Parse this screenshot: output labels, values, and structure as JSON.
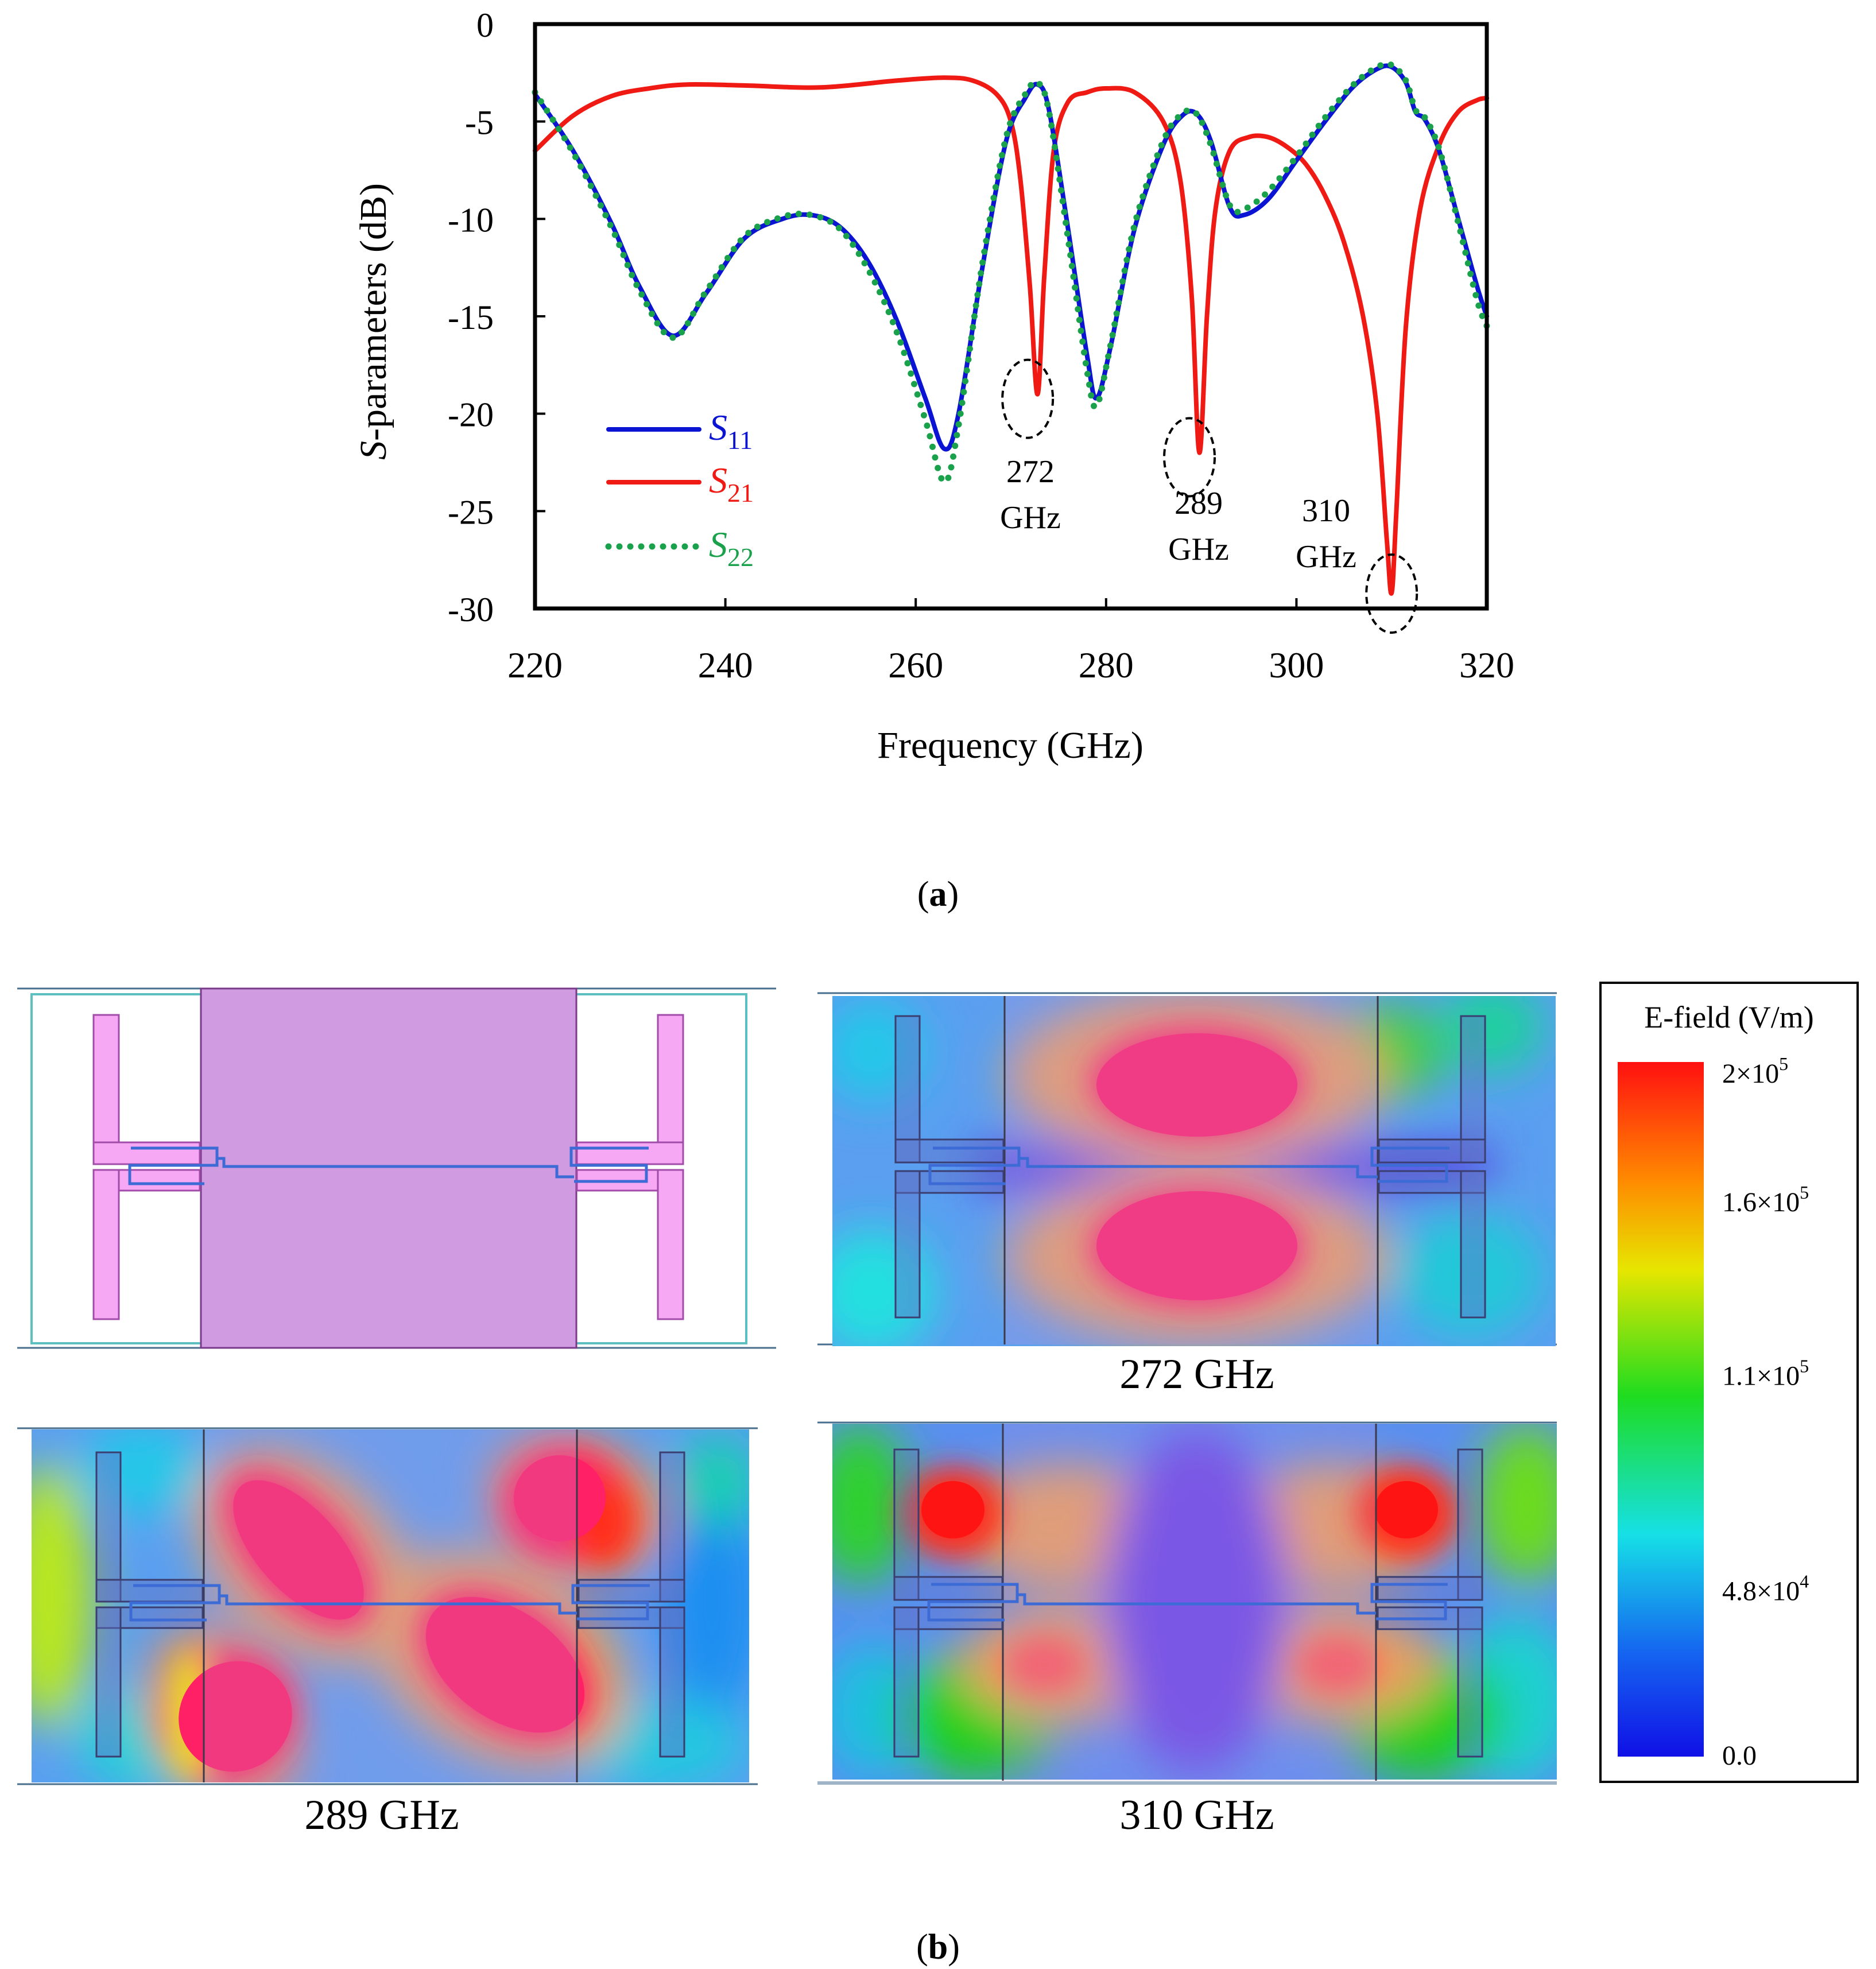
{
  "chart_data": {
    "type": "line",
    "xlabel": "Frequency  (GHz)",
    "ylabel": "S-parameters (dB)",
    "ylabel_italic_prefix": "S",
    "ylabel_rest": "-parameters (dB)",
    "xlim": [
      220,
      320
    ],
    "ylim": [
      -30,
      0
    ],
    "x_ticks": [
      220,
      240,
      260,
      280,
      300,
      320
    ],
    "y_ticks": [
      0,
      -5,
      -10,
      -15,
      -20,
      -25,
      -30
    ],
    "y_tick_labels": [
      "0",
      "-5",
      "-10",
      "-15",
      "-20",
      "-25",
      "-30"
    ],
    "x_tick_labels": [
      "220",
      "240",
      "260",
      "280",
      "300",
      "320"
    ],
    "series": [
      {
        "name": "S11",
        "label_main": "S",
        "label_sub": "11",
        "color": "#0a14d2",
        "style": "solid",
        "x": [
          220,
          224,
          228,
          231,
          234.5,
          238,
          242,
          246,
          249,
          252,
          255,
          258,
          261,
          263,
          264.5,
          267,
          269.5,
          271.5,
          272.8,
          274,
          276,
          278,
          279,
          280.5,
          283,
          286,
          288,
          289.5,
          291,
          293,
          294.5,
          297,
          300,
          303,
          306,
          308.5,
          310,
          311.5,
          312.5,
          313.5,
          315,
          317,
          319,
          320
        ],
        "y": [
          -3.6,
          -6.5,
          -10.2,
          -13.5,
          -16.0,
          -13.8,
          -11.0,
          -10.0,
          -9.8,
          -10.4,
          -12.2,
          -15.2,
          -19.2,
          -21.8,
          -20.0,
          -12.5,
          -6.0,
          -3.8,
          -3.1,
          -4.4,
          -10.5,
          -17.0,
          -19.2,
          -16.5,
          -10.5,
          -6.2,
          -4.7,
          -4.6,
          -6.0,
          -9.4,
          -9.8,
          -9.0,
          -7.0,
          -5.0,
          -3.2,
          -2.3,
          -2.2,
          -3.0,
          -4.5,
          -4.9,
          -6.5,
          -10.0,
          -13.5,
          -15.0
        ]
      },
      {
        "name": "S21",
        "label_main": "S",
        "label_sub": "21",
        "color": "#f01a14",
        "style": "solid",
        "x": [
          220,
          224,
          228,
          232,
          236,
          242,
          250,
          258,
          263,
          266,
          268.5,
          270,
          271,
          272,
          272.8,
          273.5,
          274.5,
          276,
          278,
          280,
          283,
          286,
          287.8,
          289,
          289.8,
          290.6,
          291.5,
          293,
          295,
          297,
          299,
          301,
          303,
          305,
          307,
          308.5,
          309.5,
          310,
          310.5,
          311.5,
          313,
          315,
          317,
          319,
          320
        ],
        "y": [
          -6.5,
          -4.7,
          -3.7,
          -3.3,
          -3.1,
          -3.15,
          -3.25,
          -2.9,
          -2.75,
          -2.9,
          -3.6,
          -5.0,
          -8.0,
          -13.5,
          -19.0,
          -13.0,
          -6.5,
          -4.0,
          -3.5,
          -3.3,
          -3.5,
          -5.0,
          -8.0,
          -14.0,
          -22.0,
          -15.0,
          -9.5,
          -6.5,
          -5.8,
          -5.8,
          -6.3,
          -7.2,
          -8.8,
          -11.2,
          -15.0,
          -20.0,
          -26.5,
          -29.2,
          -25.0,
          -15.5,
          -9.5,
          -6.2,
          -4.5,
          -3.9,
          -3.8
        ]
      },
      {
        "name": "S22",
        "label_main": "S",
        "label_sub": "22",
        "color": "#1aa14b",
        "style": "dotted",
        "x": [
          220,
          224,
          228,
          231,
          234.5,
          238,
          242,
          246,
          249,
          252,
          255,
          258,
          261,
          263,
          264.5,
          267,
          269.5,
          271.5,
          272.8,
          274,
          276,
          278,
          279,
          280.5,
          283,
          286,
          288,
          289.5,
          291,
          293,
          294.5,
          297,
          300,
          303,
          306,
          308.5,
          310,
          311.5,
          312.5,
          313.5,
          315,
          317,
          319,
          320
        ],
        "y": [
          -3.5,
          -6.6,
          -10.4,
          -13.7,
          -16.1,
          -13.7,
          -10.9,
          -9.9,
          -9.8,
          -10.5,
          -12.6,
          -15.8,
          -20.3,
          -23.5,
          -20.6,
          -12.3,
          -5.8,
          -3.6,
          -3.0,
          -4.5,
          -11.0,
          -17.8,
          -19.6,
          -16.4,
          -10.3,
          -6.0,
          -4.6,
          -4.6,
          -6.2,
          -9.3,
          -9.5,
          -8.6,
          -6.8,
          -4.8,
          -3.1,
          -2.2,
          -2.1,
          -2.9,
          -4.4,
          -4.8,
          -6.4,
          -10.2,
          -14.2,
          -15.5
        ]
      }
    ],
    "annotations": [
      {
        "freq": 272,
        "y": -19,
        "lines": [
          "272",
          "GHz"
        ]
      },
      {
        "freq": 289,
        "y": -22,
        "lines": [
          "289",
          "GHz"
        ]
      },
      {
        "freq": 310,
        "y": -29,
        "lines": [
          "310",
          "GHz"
        ]
      }
    ]
  },
  "captions": {
    "a": "a",
    "b": "b"
  },
  "panels": {
    "p272": "272 GHz",
    "p289": "289 GHz",
    "p310": "310 GHz"
  },
  "colorbar": {
    "title": "E-field (V/m)",
    "ticks": [
      {
        "value": 200000,
        "base": "2×10",
        "exp": "5"
      },
      {
        "value": 160000,
        "base": "1.6×10",
        "exp": "5"
      },
      {
        "value": 110000,
        "base": "1.1×10",
        "exp": "5"
      },
      {
        "value": 48000,
        "base": "4.8×10",
        "exp": "4"
      },
      {
        "value": 0,
        "base": "0.0",
        "exp": ""
      }
    ],
    "colors": [
      "#ff1010",
      "#ff8a00",
      "#e6e600",
      "#1fdc1f",
      "#16e0e6",
      "#1565f0",
      "#1010e6"
    ]
  }
}
